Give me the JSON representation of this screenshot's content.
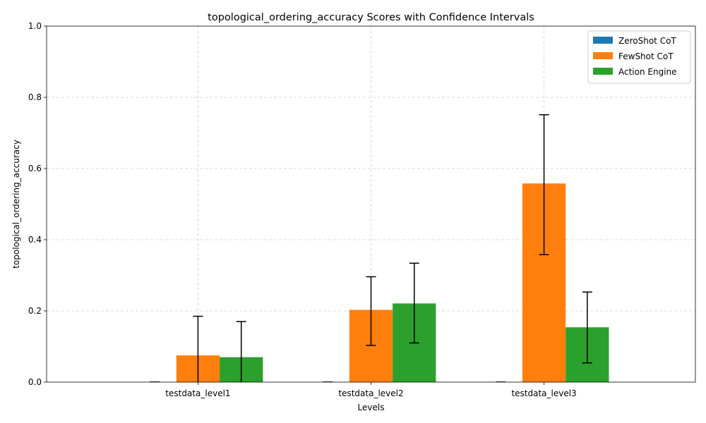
{
  "chart_data": {
    "type": "bar",
    "title": "topological_ordering_accuracy Scores with Confidence Intervals",
    "xlabel": "Levels",
    "ylabel": "topological_ordering_accuracy",
    "ylim": [
      0,
      1.0
    ],
    "yticks": [
      "0.0",
      "0.2",
      "0.4",
      "0.6",
      "0.8",
      "1.0"
    ],
    "grid": true,
    "legend_position": "top-right",
    "categories": [
      "testdata_level1",
      "testdata_level2",
      "testdata_level3"
    ],
    "series": [
      {
        "name": "ZeroShot CoT",
        "color": "#1f77b4",
        "values": [
          0.0,
          0.0,
          0.0
        ],
        "ci_low": [
          0.0,
          0.0,
          0.0
        ],
        "ci_high": [
          0.0,
          0.0,
          0.0
        ]
      },
      {
        "name": "FewShot CoT",
        "color": "#ff7f0e",
        "values": [
          0.075,
          0.203,
          0.558
        ],
        "ci_low": [
          -0.035,
          0.103,
          0.358
        ],
        "ci_high": [
          0.185,
          0.296,
          0.751
        ]
      },
      {
        "name": "Action Engine",
        "color": "#2ca02c",
        "values": [
          0.07,
          0.221,
          0.154
        ],
        "ci_low": [
          -0.03,
          0.11,
          0.054
        ],
        "ci_high": [
          0.17,
          0.334,
          0.253
        ]
      }
    ]
  }
}
